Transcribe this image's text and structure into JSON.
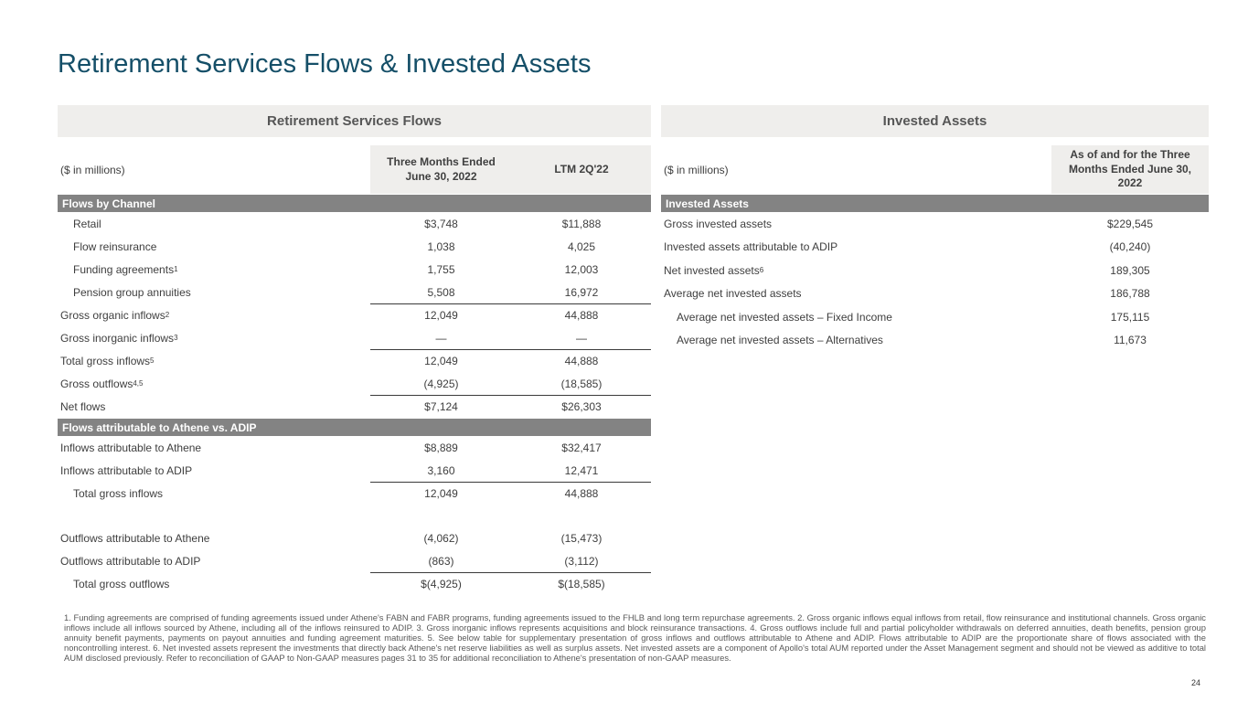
{
  "slide": {
    "title": "Retirement Services Flows & Invested Assets",
    "page_number": "24",
    "title_color": "#154f68",
    "section_bar_color": "#838383",
    "banner_bg_color": "#efeeec"
  },
  "flows_table": {
    "banner": "Retirement Services Flows",
    "units_label": "($ in millions)",
    "columns": [
      "Three Months Ended June 30, 2022",
      "LTM 2Q'22"
    ],
    "sections": [
      {
        "header": "Flows by Channel",
        "rows": [
          {
            "label": "Retail",
            "indent": 1,
            "values": [
              "$3,748",
              "$11,888"
            ]
          },
          {
            "label": "Flow reinsurance",
            "indent": 1,
            "values": [
              "1,038",
              "4,025"
            ]
          },
          {
            "label": "Funding agreements",
            "sup": "1",
            "indent": 1,
            "values": [
              "1,755",
              "12,003"
            ]
          },
          {
            "label": "Pension group annuities",
            "indent": 1,
            "values": [
              "5,508",
              "16,972"
            ]
          },
          {
            "label": "Gross organic inflows",
            "sup": "2",
            "indent": 0,
            "line_above": true,
            "values": [
              "12,049",
              "44,888"
            ]
          },
          {
            "label": "Gross inorganic inflows",
            "sup": "3",
            "indent": 0,
            "values": [
              "—",
              "—"
            ]
          },
          {
            "label": "Total gross inflows",
            "sup": "5",
            "indent": 0,
            "line_above": true,
            "values": [
              "12,049",
              "44,888"
            ]
          },
          {
            "label": "Gross outflows",
            "sup": "4,5",
            "indent": 0,
            "values": [
              "(4,925)",
              "(18,585)"
            ]
          },
          {
            "label": "Net flows",
            "indent": 0,
            "line_above": true,
            "values": [
              "$7,124",
              "$26,303"
            ]
          }
        ]
      },
      {
        "header": "Flows attributable to Athene vs. ADIP",
        "rows": [
          {
            "label": "Inflows attributable to Athene",
            "indent": 0,
            "values": [
              "$8,889",
              "$32,417"
            ]
          },
          {
            "label": "Inflows attributable to ADIP",
            "indent": 0,
            "values": [
              "3,160",
              "12,471"
            ]
          },
          {
            "label": "Total gross inflows",
            "indent": 1,
            "line_above": true,
            "values": [
              "12,049",
              "44,888"
            ]
          },
          {
            "spacer": true
          },
          {
            "label": "Outflows attributable to Athene",
            "indent": 0,
            "values": [
              "(4,062)",
              "(15,473)"
            ]
          },
          {
            "label": "Outflows attributable to ADIP",
            "indent": 0,
            "values": [
              "(863)",
              "(3,112)"
            ]
          },
          {
            "label": "Total gross outflows",
            "indent": 1,
            "line_above": true,
            "values": [
              "$(4,925)",
              "$(18,585)"
            ]
          }
        ]
      }
    ]
  },
  "invested_table": {
    "banner": "Invested Assets",
    "units_label": "($ in millions)",
    "columns": [
      "As of and for the Three Months Ended June 30, 2022"
    ],
    "sections": [
      {
        "header": "Invested Assets",
        "rows": [
          {
            "label": "Gross invested assets",
            "indent": 0,
            "values": [
              "$229,545"
            ]
          },
          {
            "label": "Invested assets attributable to ADIP",
            "indent": 0,
            "values": [
              "(40,240)"
            ]
          },
          {
            "label": "Net invested assets",
            "sup": "6",
            "indent": 0,
            "values": [
              "189,305"
            ]
          },
          {
            "label": "Average net invested assets",
            "indent": 0,
            "values": [
              "186,788"
            ]
          },
          {
            "label": "Average net invested assets – Fixed Income",
            "indent": 1,
            "values": [
              "175,115"
            ]
          },
          {
            "label": "Average net invested assets – Alternatives",
            "indent": 1,
            "values": [
              "11,673"
            ]
          }
        ]
      }
    ]
  },
  "footnotes": "1. Funding agreements are comprised of funding agreements issued under Athene's FABN and FABR programs, funding agreements issued to the FHLB and long term repurchase agreements. 2. Gross organic inflows equal inflows from retail, flow reinsurance and institutional channels. Gross organic inflows include all inflows sourced by Athene, including all of the inflows reinsured to ADIP. 3. Gross inorganic inflows represents acquisitions and block reinsurance transactions. 4. Gross outflows include full and partial policyholder withdrawals on deferred annuities, death benefits, pension group annuity benefit payments, payments on payout annuities and funding agreement maturities. 5. See below table for supplementary presentation of gross inflows and outflows attributable to Athene and ADIP. Flows attributable to ADIP are the proportionate share of flows associated with the noncontrolling interest. 6. Net invested assets represent the investments that directly back Athene's net reserve liabilities as well as surplus assets. Net invested assets are a component of Apollo's total AUM reported under the Asset Management segment and should not be viewed as additive to total AUM disclosed previously. Refer to reconciliation of GAAP to Non-GAAP measures pages 31 to 35 for additional reconciliation to Athene's presentation of non-GAAP measures."
}
